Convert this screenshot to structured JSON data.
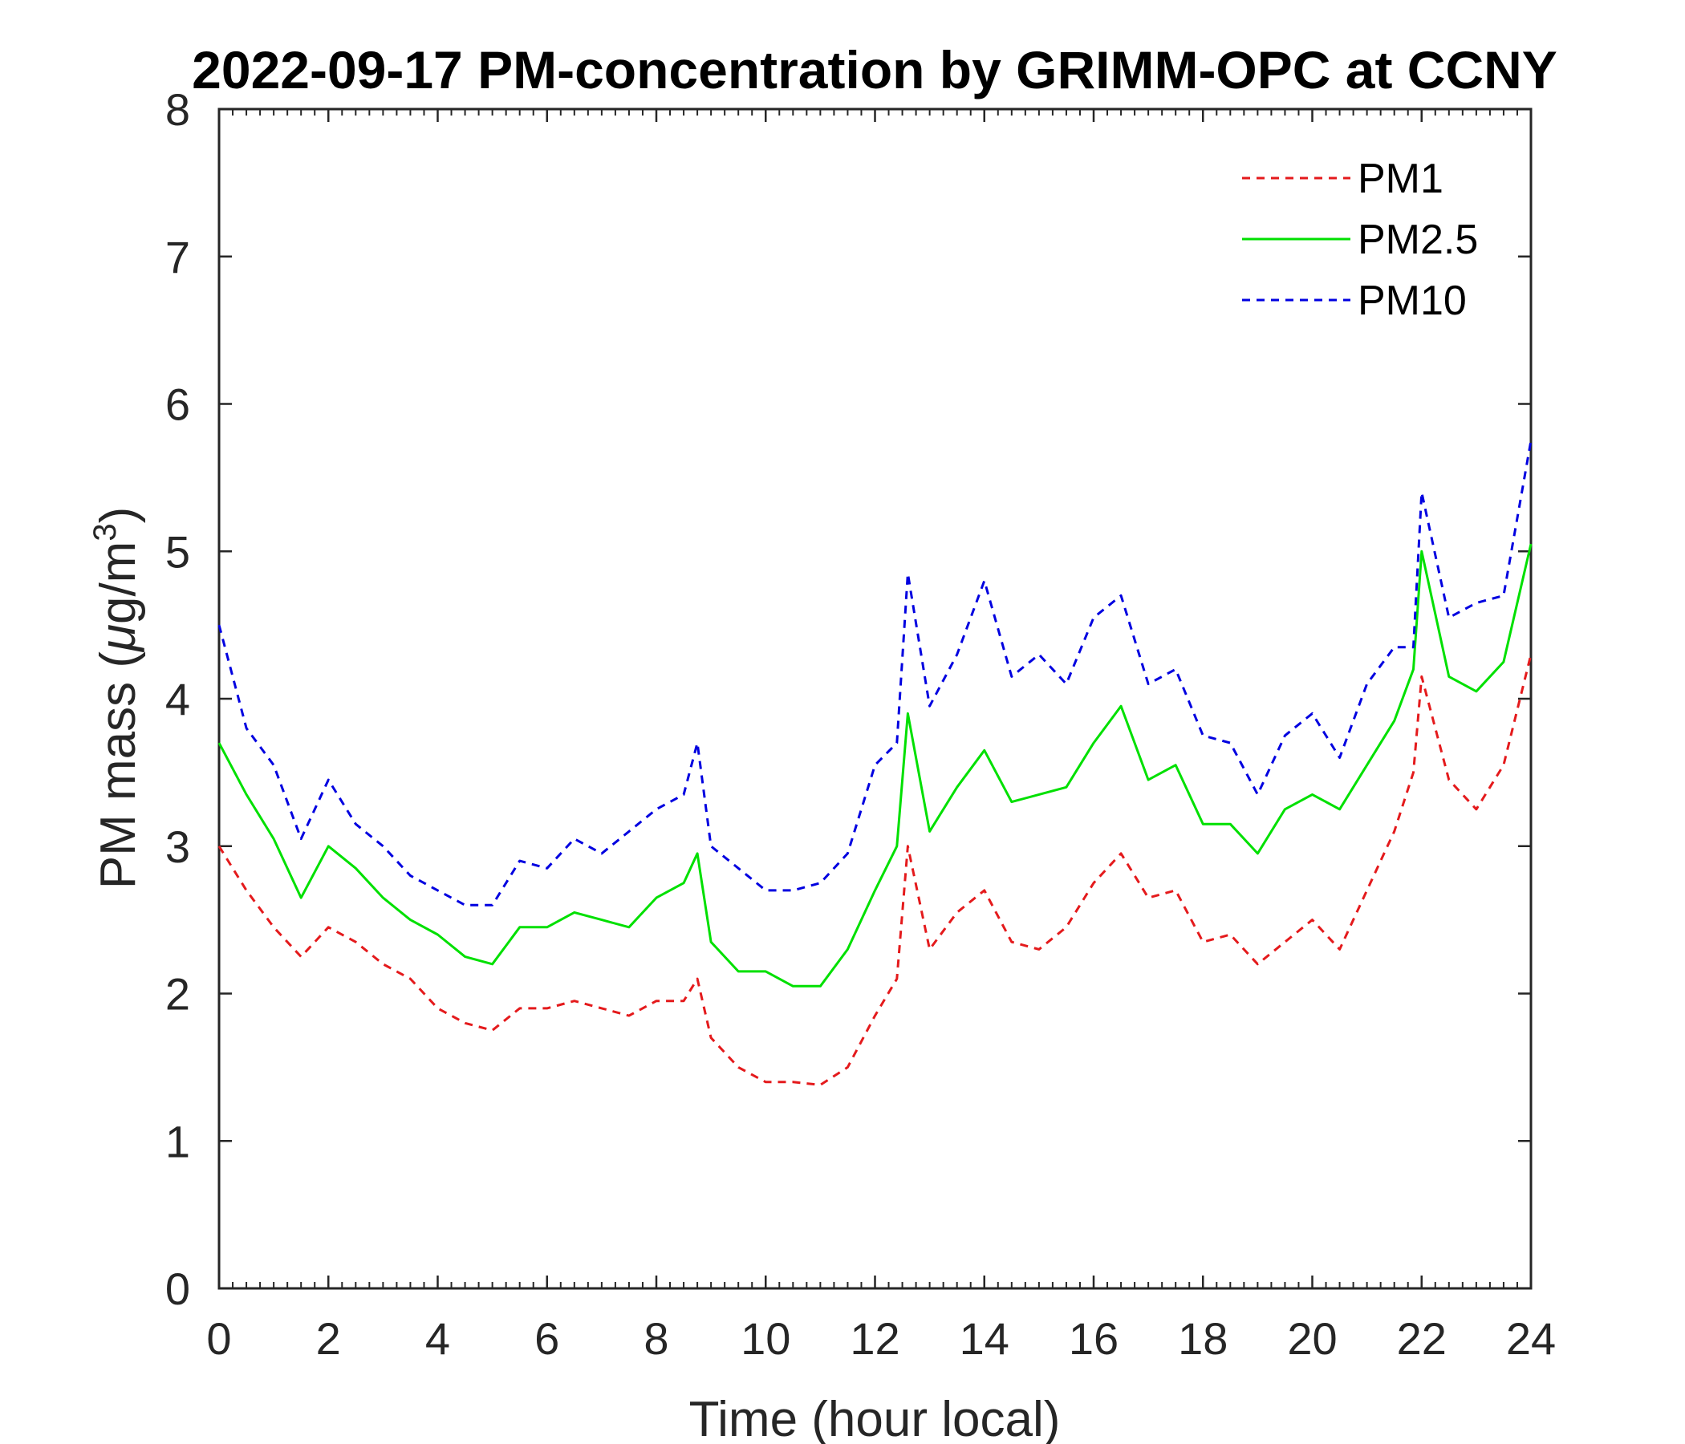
{
  "chart_data": {
    "type": "line",
    "title": "2022-09-17 PM-concentration by GRIMM-OPC at CCNY",
    "xlabel": "Time (hour local)",
    "ylabel_main": "PM mass (",
    "ylabel_mu": "μ",
    "ylabel_unit": "g/m",
    "ylabel_sup": "3",
    "ylabel_close": ")",
    "xlim": [
      0,
      24
    ],
    "ylim": [
      0,
      8
    ],
    "xticks": [
      0,
      2,
      4,
      6,
      8,
      10,
      12,
      14,
      16,
      18,
      20,
      22,
      24
    ],
    "yticks": [
      0,
      1,
      2,
      3,
      4,
      5,
      6,
      7,
      8
    ],
    "grid": false,
    "legend_position": "top-right",
    "x": [
      0,
      0.5,
      1,
      1.5,
      2,
      2.5,
      3,
      3.5,
      4,
      4.5,
      5,
      5.5,
      6,
      6.5,
      7,
      7.5,
      8,
      8.5,
      8.75,
      9,
      9.5,
      10,
      10.5,
      11,
      11.5,
      12,
      12.4,
      12.6,
      13,
      13.5,
      14,
      14.5,
      15,
      15.5,
      16,
      16.5,
      17,
      17.5,
      18,
      18.5,
      19,
      19.5,
      20,
      20.5,
      21,
      21.5,
      21.85,
      22,
      22.5,
      23,
      23.5,
      24
    ],
    "series": [
      {
        "name": "PM1",
        "color": "#e41a1c",
        "dash": "10,8",
        "values": [
          3.0,
          2.7,
          2.45,
          2.25,
          2.45,
          2.35,
          2.2,
          2.1,
          1.9,
          1.8,
          1.75,
          1.9,
          1.9,
          1.95,
          1.9,
          1.85,
          1.95,
          1.95,
          2.1,
          1.7,
          1.5,
          1.4,
          1.4,
          1.38,
          1.5,
          1.85,
          2.1,
          3.0,
          2.3,
          2.55,
          2.7,
          2.35,
          2.3,
          2.45,
          2.75,
          2.95,
          2.65,
          2.7,
          2.35,
          2.4,
          2.2,
          2.35,
          2.5,
          2.3,
          2.7,
          3.1,
          3.5,
          4.15,
          3.45,
          3.25,
          3.55,
          4.3
        ]
      },
      {
        "name": "PM2.5",
        "color": "#00e000",
        "dash": "none",
        "values": [
          3.7,
          3.35,
          3.05,
          2.65,
          3.0,
          2.85,
          2.65,
          2.5,
          2.4,
          2.25,
          2.2,
          2.45,
          2.45,
          2.55,
          2.5,
          2.45,
          2.65,
          2.75,
          2.95,
          2.35,
          2.15,
          2.15,
          2.05,
          2.05,
          2.3,
          2.7,
          3.0,
          3.9,
          3.1,
          3.4,
          3.65,
          3.3,
          3.35,
          3.4,
          3.7,
          3.95,
          3.45,
          3.55,
          3.15,
          3.15,
          2.95,
          3.25,
          3.35,
          3.25,
          3.55,
          3.85,
          4.2,
          5.0,
          4.15,
          4.05,
          4.25,
          5.05
        ]
      },
      {
        "name": "PM10",
        "color": "#0000e0",
        "dash": "10,8",
        "values": [
          4.5,
          3.8,
          3.55,
          3.05,
          3.45,
          3.15,
          3.0,
          2.8,
          2.7,
          2.6,
          2.6,
          2.9,
          2.85,
          3.05,
          2.95,
          3.1,
          3.25,
          3.35,
          3.7,
          3.0,
          2.85,
          2.7,
          2.7,
          2.75,
          2.95,
          3.55,
          3.7,
          4.85,
          3.95,
          4.3,
          4.8,
          4.15,
          4.3,
          4.1,
          4.55,
          4.7,
          4.1,
          4.2,
          3.75,
          3.7,
          3.35,
          3.75,
          3.9,
          3.6,
          4.1,
          4.35,
          4.35,
          5.4,
          4.55,
          4.65,
          4.7,
          5.75
        ]
      }
    ]
  }
}
